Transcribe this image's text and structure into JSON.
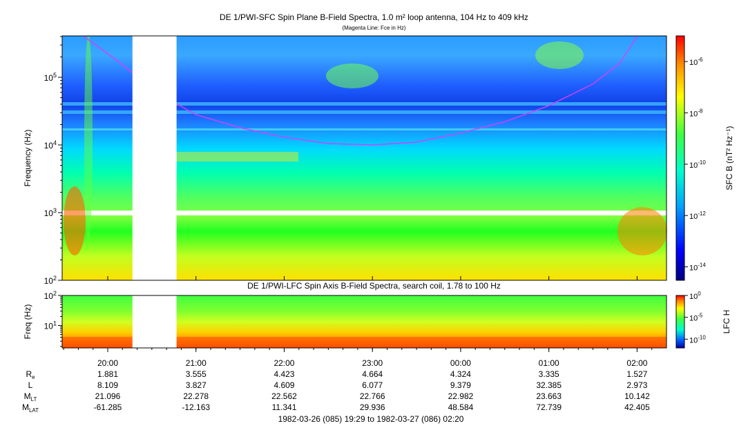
{
  "titles": {
    "main": "DE 1/PWI-SFC  Spin Plane B-Field Spectra, 1.0 m² loop antenna, 104 Hz to 409 kHz",
    "sub": "(Magenta Line: Fce in Hz)",
    "lower": "DE 1/PWI-LFC  Spin Axis B-Field Spectra, search coil, 1.78 to 100 Hz"
  },
  "colors": {
    "fce_line": "#d040ff",
    "gap": "#ffffff"
  },
  "chart_data": [
    {
      "type": "heatmap",
      "panel": "sfc",
      "ylabel": "Frequency (Hz)",
      "yscale": "log",
      "ylim": [
        100,
        409000
      ],
      "yticks": [
        {
          "value": 100,
          "label": "10",
          "exp": "2"
        },
        {
          "value": 1000,
          "label": "10",
          "exp": "3"
        },
        {
          "value": 10000,
          "label": "10",
          "exp": "4"
        },
        {
          "value": 100000,
          "label": "10",
          "exp": "5"
        }
      ],
      "colorbar": {
        "label": "SFC B (nT² Hz⁻¹)",
        "scale": "log",
        "range": [
          3e-15,
          1e-05
        ],
        "ticks": [
          {
            "value": 1e-06,
            "label": "10",
            "exp": "-6"
          },
          {
            "value": 1e-08,
            "label": "10",
            "exp": "-8"
          },
          {
            "value": 1e-10,
            "label": "10",
            "exp": "-10"
          },
          {
            "value": 1e-12,
            "label": "10",
            "exp": "-12"
          },
          {
            "value": 1e-14,
            "label": "10",
            "exp": "-14"
          }
        ]
      },
      "fce_line": {
        "name": "Fce",
        "points": [
          [
            19.73,
            400000
          ],
          [
            19.95,
            250000
          ],
          [
            20.15,
            160000
          ],
          [
            20.55,
            60000
          ],
          [
            21.0,
            28000
          ],
          [
            21.5,
            18000
          ],
          [
            22.0,
            13000
          ],
          [
            22.5,
            10500
          ],
          [
            23.0,
            10000
          ],
          [
            23.5,
            11000
          ],
          [
            24.0,
            15000
          ],
          [
            24.5,
            22000
          ],
          [
            25.0,
            38000
          ],
          [
            25.5,
            80000
          ],
          [
            25.8,
            160000
          ],
          [
            26.0,
            400000
          ]
        ]
      },
      "data_gaps": [
        {
          "t_start": 20.28,
          "t_end": 20.78
        }
      ]
    },
    {
      "type": "heatmap",
      "panel": "lfc",
      "ylabel": "Freq (Hz)",
      "yscale": "log",
      "ylim": [
        1.78,
        100
      ],
      "yticks": [
        {
          "value": 10,
          "label": "10",
          "exp": "1"
        },
        {
          "value": 100,
          "label": "10",
          "exp": "2"
        }
      ],
      "colorbar": {
        "label": "LFC H",
        "scale": "log",
        "range": [
          1e-12,
          1
        ],
        "ticks": [
          {
            "value": 1,
            "label": "10",
            "exp": "0"
          },
          {
            "value": 1e-05,
            "label": "10",
            "exp": "-5"
          },
          {
            "value": 1e-10,
            "label": "10",
            "exp": "-10"
          }
        ]
      },
      "data_gaps": [
        {
          "t_start": 20.28,
          "t_end": 20.78
        }
      ]
    }
  ],
  "time_axis": {
    "t_start": 19.4833,
    "t_end": 26.3333,
    "ticks": [
      {
        "t": 20,
        "label": "20:00"
      },
      {
        "t": 21,
        "label": "21:00"
      },
      {
        "t": 22,
        "label": "22:00"
      },
      {
        "t": 23,
        "label": "23:00"
      },
      {
        "t": 24,
        "label": "00:00"
      },
      {
        "t": 25,
        "label": "01:00"
      },
      {
        "t": 26,
        "label": "02:00"
      }
    ]
  },
  "ephemeris": {
    "rows": [
      {
        "label": "R",
        "sub": "e",
        "values": [
          "1.881",
          "3.555",
          "4.423",
          "4.664",
          "4.324",
          "3.335",
          "1.527"
        ]
      },
      {
        "label": "L",
        "sub": "",
        "values": [
          "8.109",
          "3.827",
          "4.609",
          "6.077",
          "9.379",
          "32.385",
          "2.973"
        ]
      },
      {
        "label": "M",
        "sub": "LT",
        "values": [
          "21.096",
          "22.278",
          "22.562",
          "22.766",
          "22.982",
          "23.663",
          "10.142"
        ]
      },
      {
        "label": "M",
        "sub": "LAT",
        "values": [
          "-61.285",
          "-12.163",
          "11.341",
          "29.936",
          "48.584",
          "72.739",
          "42.405"
        ]
      }
    ]
  },
  "footer": {
    "time_range": "1982-03-26 (085) 19:29 to 1982-03-27 (086) 02:20"
  }
}
